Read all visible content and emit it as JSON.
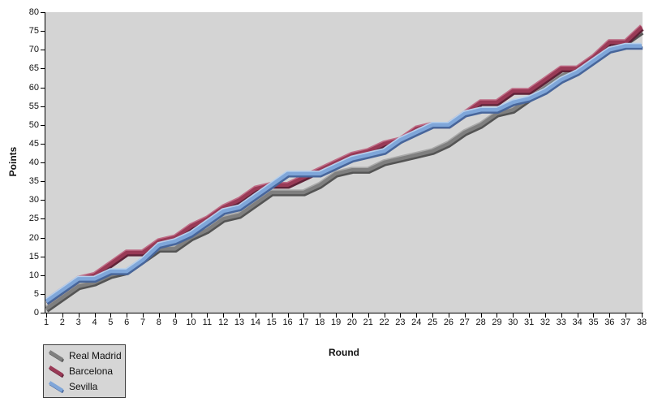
{
  "chart": {
    "y_axis_title": "Points",
    "x_axis_title": "Round",
    "plot_bg": "#d4d4d4",
    "axis_color": "#000000",
    "y_ticks": [
      0,
      5,
      10,
      15,
      20,
      25,
      30,
      35,
      40,
      45,
      50,
      55,
      60,
      65,
      70,
      75,
      80
    ],
    "x_ticks": [
      1,
      2,
      3,
      4,
      5,
      6,
      7,
      8,
      9,
      10,
      11,
      12,
      13,
      14,
      15,
      16,
      17,
      18,
      19,
      20,
      21,
      22,
      23,
      24,
      25,
      26,
      27,
      28,
      29,
      30,
      31,
      32,
      33,
      34,
      35,
      36,
      37,
      38
    ]
  },
  "legend": {
    "items": [
      "Real Madrid",
      "Barcelona",
      "Sevilla"
    ]
  },
  "chart_data": {
    "type": "line",
    "title": "",
    "xlabel": "Round",
    "ylabel": "Points",
    "xlim": [
      1,
      38
    ],
    "ylim": [
      0,
      80
    ],
    "grid": false,
    "legend_position": "bottom-left outside",
    "x": [
      1,
      2,
      3,
      4,
      5,
      6,
      7,
      8,
      9,
      10,
      11,
      12,
      13,
      14,
      15,
      16,
      17,
      18,
      19,
      20,
      21,
      22,
      23,
      24,
      25,
      26,
      27,
      28,
      29,
      30,
      31,
      32,
      33,
      34,
      35,
      36,
      37,
      38
    ],
    "series": [
      {
        "name": "Real Madrid",
        "color": "#7f7f7f",
        "shadow": "#545454",
        "highlight": "#a9a9a9",
        "values": [
          1,
          4,
          7,
          8,
          10,
          11,
          14,
          17,
          17,
          20,
          22,
          25,
          26,
          29,
          32,
          32,
          32,
          34,
          37,
          38,
          38,
          40,
          41,
          42,
          43,
          45,
          48,
          50,
          53,
          54,
          57,
          60,
          63,
          65,
          68,
          72,
          72,
          75
        ]
      },
      {
        "name": "Barcelona",
        "color": "#993a56",
        "shadow": "#5f2338",
        "highlight": "#bf6c86",
        "values": [
          3,
          6,
          9,
          10,
          13,
          16,
          16,
          19,
          20,
          23,
          25,
          28,
          30,
          33,
          34,
          34,
          36,
          38,
          40,
          42,
          43,
          45,
          46,
          49,
          50,
          50,
          53,
          56,
          56,
          59,
          59,
          62,
          65,
          65,
          68,
          72,
          72,
          76
        ]
      },
      {
        "name": "Sevilla",
        "color": "#7fa6d9",
        "shadow": "#48669b",
        "highlight": "#b6cfeb",
        "values": [
          3,
          6,
          9,
          9,
          11,
          11,
          14,
          18,
          19,
          21,
          24,
          27,
          28,
          31,
          34,
          37,
          37,
          37,
          39,
          41,
          42,
          43,
          46,
          48,
          50,
          50,
          53,
          54,
          54,
          56,
          57,
          59,
          62,
          64,
          67,
          70,
          71,
          71
        ]
      }
    ]
  }
}
